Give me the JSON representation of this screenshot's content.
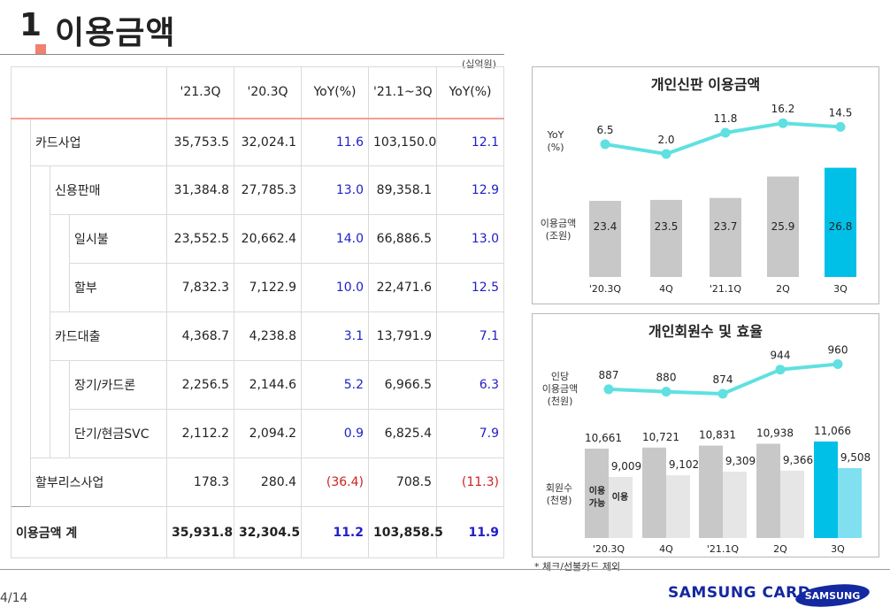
{
  "header": {
    "num": "1",
    "title": "이용금액",
    "unit": "(십억원)"
  },
  "table": {
    "columns": [
      "'21.3Q",
      "'20.3Q",
      "YoY(%)",
      "'21.1~3Q",
      "YoY(%)"
    ],
    "rows": [
      {
        "label": "카드사업",
        "v": [
          "35,753.5",
          "32,024.1",
          "11.6",
          "103,150.0",
          "12.1"
        ]
      },
      {
        "label": "신용판매",
        "v": [
          "31,384.8",
          "27,785.3",
          "13.0",
          "89,358.1",
          "12.9"
        ]
      },
      {
        "label": "일시불",
        "v": [
          "23,552.5",
          "20,662.4",
          "14.0",
          "66,886.5",
          "13.0"
        ]
      },
      {
        "label": "할부",
        "v": [
          "7,832.3",
          "7,122.9",
          "10.0",
          "22,471.6",
          "12.5"
        ]
      },
      {
        "label": "카드대출",
        "v": [
          "4,368.7",
          "4,238.8",
          "3.1",
          "13,791.9",
          "7.1"
        ]
      },
      {
        "label": "장기/카드론",
        "v": [
          "2,256.5",
          "2,144.6",
          "5.2",
          "6,966.5",
          "6.3"
        ]
      },
      {
        "label": "단기/현금SVC",
        "v": [
          "2,112.2",
          "2,094.2",
          "0.9",
          "6,825.4",
          "7.9"
        ]
      },
      {
        "label": "할부리스사업",
        "v": [
          "178.3",
          "280.4",
          "(36.4)",
          "708.5",
          "(11.3)"
        ]
      }
    ],
    "total": {
      "label": "이용금액 계",
      "v": [
        "35,931.8",
        "32,304.5",
        "11.2",
        "103,858.5",
        "11.9"
      ]
    }
  },
  "chart_data": [
    {
      "type": "bar",
      "title": "개인신판 이용금액",
      "categories": [
        "'20.3Q",
        "4Q",
        "'21.1Q",
        "2Q",
        "3Q"
      ],
      "series": [
        {
          "name": "이용금액 (조원)",
          "values": [
            23.4,
            23.5,
            23.7,
            25.9,
            26.8
          ]
        },
        {
          "name": "YoY (%)",
          "values": [
            6.5,
            2.0,
            11.8,
            16.2,
            14.5
          ]
        }
      ],
      "labels": {
        "line_axis": [
          "YoY",
          "(%)"
        ],
        "bar_axis": [
          "이용금액",
          "(조원)"
        ]
      },
      "colors": {
        "bar": "#c8c8c8",
        "bar_highlight": "#00c0e8",
        "line": "#60e0e0"
      }
    },
    {
      "type": "bar",
      "title": "개인회원수 및 효율",
      "categories": [
        "'20.3Q",
        "4Q",
        "'21.1Q",
        "2Q",
        "3Q"
      ],
      "series": [
        {
          "name": "이용 가능",
          "values": [
            10661,
            10721,
            10831,
            10938,
            11066
          ]
        },
        {
          "name": "이용",
          "values": [
            9009,
            9102,
            9309,
            9366,
            9508
          ]
        },
        {
          "name": "인당 이용금액 (천원)",
          "values": [
            887,
            880,
            874,
            944,
            960
          ]
        }
      ],
      "labels": {
        "line_axis": [
          "인당",
          "이용금액",
          "(천원)"
        ],
        "bar_axis": [
          "회원수",
          "(천명)"
        ],
        "bar_a_value_labels": [
          "10,661",
          "10,721",
          "10,831",
          "10,938",
          "11,066"
        ],
        "bar_b_value_labels": [
          "9,009",
          "9,102",
          "9,309",
          "9,366",
          "9,508"
        ],
        "legend_a": [
          "이용",
          "가능"
        ],
        "legend_b": "이용"
      },
      "colors": {
        "bar_a": "#c8c8c8",
        "bar_b": "#e6e6e6",
        "bar_a_highlight": "#00c0e8",
        "bar_b_highlight": "#80e0f0",
        "line": "#60e0e0"
      }
    }
  ],
  "footer": {
    "footnote": "* 체크/선불카드 제외",
    "page": "4/14",
    "brand": "SAMSUNG CARD",
    "logo": "SAMSUNG"
  }
}
